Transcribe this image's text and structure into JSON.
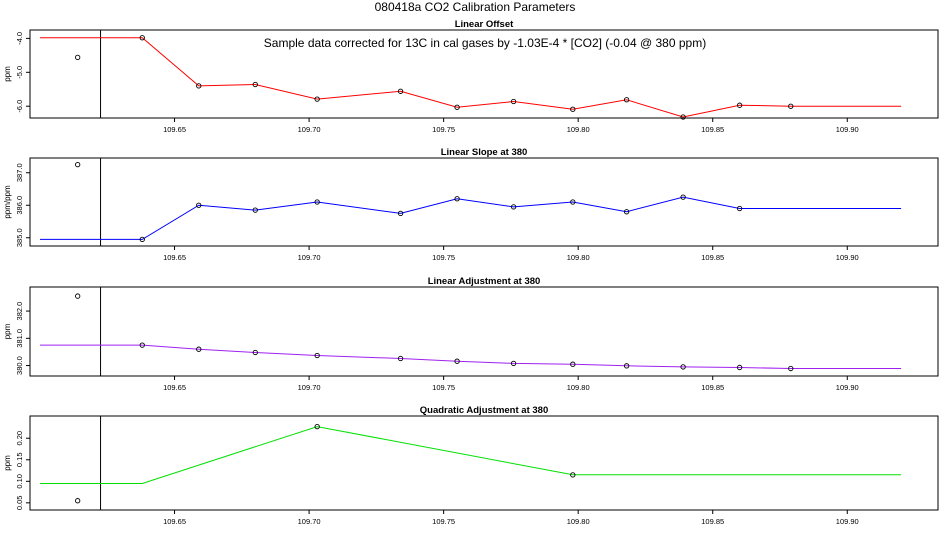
{
  "page_title": "080418a   CO2 Calibration Parameters",
  "annotation": "Sample data corrected for 13C in cal gases by -1.03E-4 * [CO2] (-0.04 @ 380 ppm)",
  "reference_x": 109.6225,
  "chart_data": [
    {
      "type": "line",
      "title": "Linear Offset",
      "ylabel": "ppm",
      "color": "#ff0000",
      "xlim": [
        109.6,
        109.93
      ],
      "ylim": [
        -6.2,
        -3.9
      ],
      "xticks": [
        109.65,
        109.7,
        109.75,
        109.8,
        109.85,
        109.9
      ],
      "xtick_labels": [
        "109.65",
        "109.70",
        "109.75",
        "109.80",
        "109.85",
        "109.90"
      ],
      "yticks": [
        -4.0,
        -5.0,
        -6.0
      ],
      "ytick_labels": [
        "-4.0",
        "-5.0",
        "-6.0"
      ],
      "outlier": {
        "x": 109.614,
        "y": -4.56
      },
      "line_start": {
        "x": 109.6,
        "y": -3.98
      },
      "points": [
        {
          "x": 109.638,
          "y": -3.98
        },
        {
          "x": 109.659,
          "y": -5.4
        },
        {
          "x": 109.68,
          "y": -5.36
        },
        {
          "x": 109.703,
          "y": -5.79
        },
        {
          "x": 109.734,
          "y": -5.56
        },
        {
          "x": 109.755,
          "y": -6.03
        },
        {
          "x": 109.776,
          "y": -5.86
        },
        {
          "x": 109.798,
          "y": -6.09
        },
        {
          "x": 109.818,
          "y": -5.81
        },
        {
          "x": 109.839,
          "y": -6.32
        },
        {
          "x": 109.86,
          "y": -5.97
        },
        {
          "x": 109.879,
          "y": -6.0
        }
      ],
      "line_end": {
        "x": 109.92,
        "y": -6.0
      }
    },
    {
      "type": "line",
      "title": "Linear Slope at 380",
      "ylabel": "ppm/ppm",
      "color": "#0000ff",
      "xlim": [
        109.6,
        109.93
      ],
      "ylim": [
        384.9,
        387.3
      ],
      "xticks": [
        109.65,
        109.7,
        109.75,
        109.8,
        109.85,
        109.9
      ],
      "xtick_labels": [
        "109.65",
        "109.70",
        "109.75",
        "109.80",
        "109.85",
        "109.90"
      ],
      "yticks": [
        385.0,
        386.0,
        387.0
      ],
      "ytick_labels": [
        "385.0",
        "386.0",
        "387.0"
      ],
      "outlier": {
        "x": 109.614,
        "y": 387.25
      },
      "line_start": {
        "x": 109.6,
        "y": 384.95
      },
      "points": [
        {
          "x": 109.638,
          "y": 384.95
        },
        {
          "x": 109.659,
          "y": 386.0
        },
        {
          "x": 109.68,
          "y": 385.85
        },
        {
          "x": 109.703,
          "y": 386.1
        },
        {
          "x": 109.734,
          "y": 385.75
        },
        {
          "x": 109.755,
          "y": 386.2
        },
        {
          "x": 109.776,
          "y": 385.95
        },
        {
          "x": 109.798,
          "y": 386.1
        },
        {
          "x": 109.818,
          "y": 385.8
        },
        {
          "x": 109.839,
          "y": 386.25
        },
        {
          "x": 109.86,
          "y": 385.9
        }
      ],
      "line_end": {
        "x": 109.92,
        "y": 385.9
      }
    },
    {
      "type": "line",
      "title": "Linear Adjustment at 380",
      "ylabel": "ppm",
      "color": "#a020f0",
      "xlim": [
        109.6,
        109.93
      ],
      "ylim": [
        379.8,
        382.7
      ],
      "xticks": [
        109.65,
        109.7,
        109.75,
        109.8,
        109.85,
        109.9
      ],
      "xtick_labels": [
        "109.65",
        "109.70",
        "109.75",
        "109.80",
        "109.85",
        "109.90"
      ],
      "yticks": [
        380.0,
        381.0,
        382.0
      ],
      "ytick_labels": [
        "380.0",
        "381.0",
        "382.0"
      ],
      "outlier": {
        "x": 109.614,
        "y": 382.55
      },
      "line_start": {
        "x": 109.6,
        "y": 380.75
      },
      "points": [
        {
          "x": 109.638,
          "y": 380.75
        },
        {
          "x": 109.659,
          "y": 380.6
        },
        {
          "x": 109.68,
          "y": 380.48
        },
        {
          "x": 109.703,
          "y": 380.37
        },
        {
          "x": 109.734,
          "y": 380.26
        },
        {
          "x": 109.755,
          "y": 380.16
        },
        {
          "x": 109.776,
          "y": 380.08
        },
        {
          "x": 109.798,
          "y": 380.05
        },
        {
          "x": 109.818,
          "y": 379.99
        },
        {
          "x": 109.839,
          "y": 379.95
        },
        {
          "x": 109.86,
          "y": 379.93
        },
        {
          "x": 109.879,
          "y": 379.89
        }
      ],
      "line_end": {
        "x": 109.92,
        "y": 379.89
      }
    },
    {
      "type": "line",
      "title": "Quadratic Adjustment at 380",
      "ylabel": "ppm",
      "color": "#00e000",
      "xlim": [
        109.6,
        109.93
      ],
      "ylim": [
        0.045,
        0.24
      ],
      "xticks": [
        109.65,
        109.7,
        109.75,
        109.8,
        109.85,
        109.9
      ],
      "xtick_labels": [
        "109.65",
        "109.70",
        "109.75",
        "109.80",
        "109.85",
        "109.90"
      ],
      "yticks": [
        0.05,
        0.1,
        0.15,
        0.2
      ],
      "ytick_labels": [
        "0.05",
        "0.10",
        "0.15",
        "0.20"
      ],
      "outlier": {
        "x": 109.614,
        "y": 0.055
      },
      "line_start": {
        "x": 109.6,
        "y": 0.095
      },
      "points": [
        {
          "x": 109.638,
          "y": 0.095
        },
        {
          "x": 109.703,
          "y": 0.227
        },
        {
          "x": 109.798,
          "y": 0.115
        }
      ],
      "line_end": {
        "x": 109.92,
        "y": 0.115
      },
      "marker_indices": [
        1,
        2
      ]
    }
  ]
}
